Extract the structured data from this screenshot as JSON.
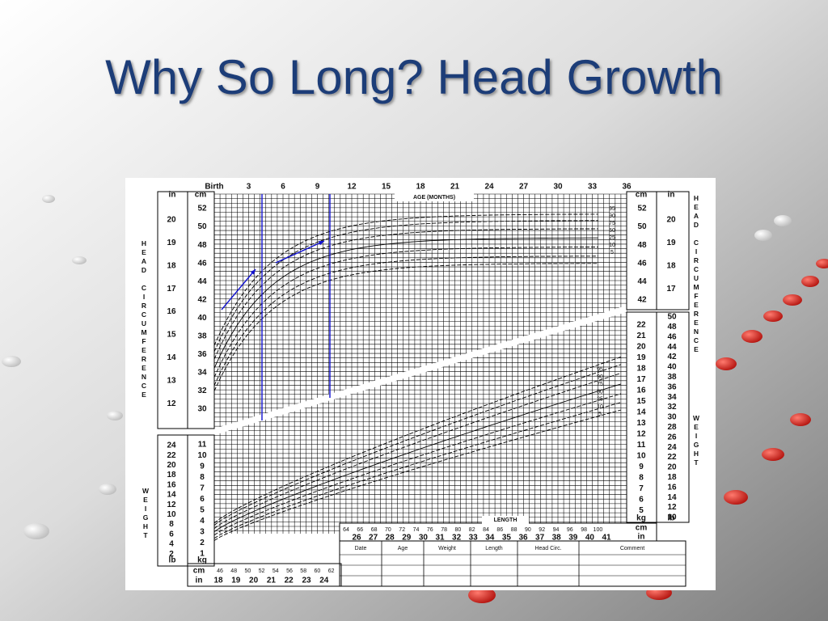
{
  "slide": {
    "title": "Why So Long? Head Growth"
  },
  "chart": {
    "age_header": "AGE (MONTHS)",
    "age_ticks": [
      "Birth",
      "3",
      "6",
      "9",
      "12",
      "15",
      "18",
      "21",
      "24",
      "27",
      "30",
      "33",
      "36"
    ],
    "hc_label": "HEAD CIRCUMFERENCE",
    "weight_label": "WEIGHT",
    "cm_unit": "cm",
    "in_unit": "in",
    "kg_unit": "kg",
    "lb_unit": "lb",
    "hc_cm_left": [
      52,
      50,
      48,
      46,
      44,
      42,
      40,
      38,
      36,
      34,
      32,
      30
    ],
    "hc_in_left": [
      20,
      19,
      18,
      17,
      16,
      15,
      14,
      13,
      12
    ],
    "hc_cm_right": [
      52,
      50,
      48,
      46,
      44,
      42
    ],
    "hc_in_right": [
      20,
      19,
      18,
      17
    ],
    "hc_percentiles": [
      95,
      90,
      75,
      50,
      25,
      10,
      5
    ],
    "wt_percentiles": [
      95,
      90,
      75,
      50,
      25,
      10,
      5
    ],
    "wt_kg_left": [
      11,
      10,
      9,
      8,
      7,
      6,
      5,
      4,
      3,
      2,
      1
    ],
    "wt_lb_left": [
      24,
      22,
      20,
      18,
      16,
      14,
      12,
      10,
      8,
      6,
      4,
      2
    ],
    "wt_kg_right": [
      22,
      21,
      20,
      19,
      18,
      17,
      16,
      15,
      14,
      13,
      12,
      11,
      10,
      9,
      8,
      7,
      6,
      5
    ],
    "wt_lb_right": [
      50,
      48,
      46,
      44,
      42,
      40,
      38,
      36,
      34,
      32,
      30,
      28,
      26,
      24,
      22,
      20,
      18,
      16,
      14,
      12,
      10
    ],
    "length_label": "LENGTH",
    "length_cm_left": [
      46,
      48,
      50,
      52,
      54,
      56,
      58,
      60,
      62
    ],
    "length_in_left": [
      18,
      19,
      20,
      21,
      22,
      23,
      24
    ],
    "length_cm_right": [
      64,
      66,
      68,
      70,
      72,
      74,
      76,
      78,
      80,
      82,
      84,
      86,
      88,
      90,
      92,
      94,
      96,
      98,
      100
    ],
    "length_in_right": [
      26,
      27,
      28,
      29,
      30,
      31,
      32,
      33,
      34,
      35,
      36,
      37,
      38,
      39,
      40,
      41
    ],
    "table_headers": [
      "Date",
      "Age",
      "Weight",
      "Length",
      "Head Circ.",
      "Comment"
    ]
  }
}
